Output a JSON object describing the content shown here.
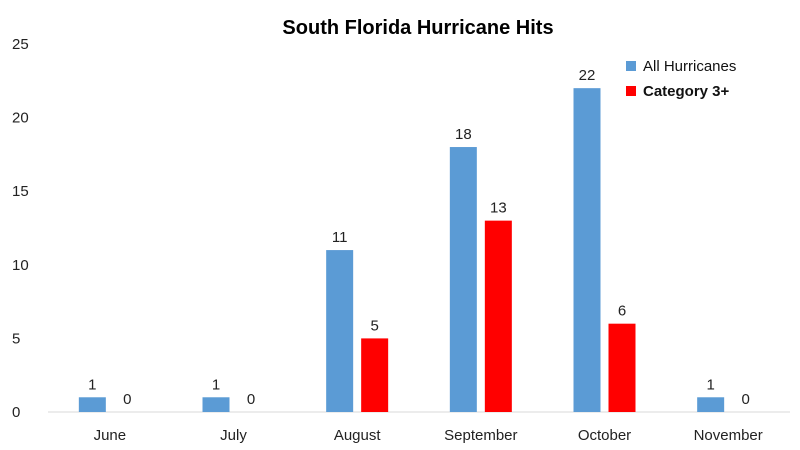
{
  "chart_data": {
    "type": "bar",
    "title": "South Florida Hurricane Hits",
    "xlabel": "",
    "ylabel": "",
    "categories": [
      "June",
      "July",
      "August",
      "September",
      "October",
      "November"
    ],
    "series": [
      {
        "name": "All Hurricanes",
        "values": [
          1,
          1,
          11,
          18,
          22,
          1
        ],
        "color": "#5b9bd5"
      },
      {
        "name": "Category 3+",
        "values": [
          0,
          0,
          5,
          13,
          6,
          0
        ],
        "color": "#ff0000"
      }
    ],
    "ylim": [
      0,
      25
    ],
    "yticks": [
      0,
      5,
      10,
      15,
      20,
      25
    ],
    "grid": false,
    "legend_position": "top-right",
    "data_labels": true
  }
}
